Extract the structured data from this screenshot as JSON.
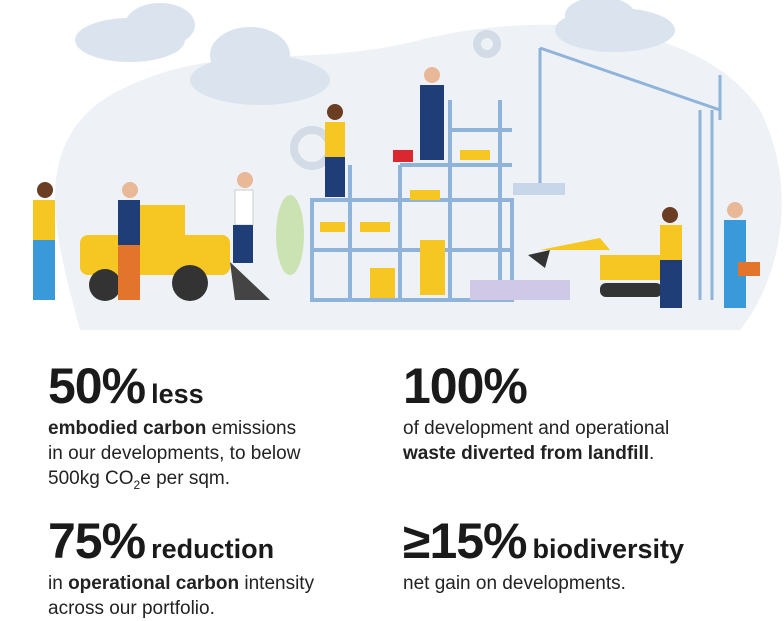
{
  "stats": [
    {
      "big": "50%",
      "suffix": "less",
      "line1_bold": "embodied carbon",
      "line1_rest": " emissions",
      "line2": "in our developments, to below",
      "line3_pre": "500kg CO",
      "line3_sub": "2",
      "line3_post": "e per sqm."
    },
    {
      "big": "100%",
      "line1": "of development and operational",
      "line2_bold": "waste diverted from landfill",
      "line2_rest": "."
    },
    {
      "big": "75%",
      "suffix": "reduction",
      "line1_pre": "in ",
      "line1_bold": "operational carbon",
      "line1_rest": " intensity",
      "line2": "across our portfolio."
    },
    {
      "big": "≥15%",
      "suffix": "biodiversity",
      "line1": "net gain on developments."
    }
  ],
  "colors": {
    "accent_yellow": "#f6c623",
    "scaffold_blue": "#8fb3d9",
    "cloud": "#dfe6f0"
  }
}
